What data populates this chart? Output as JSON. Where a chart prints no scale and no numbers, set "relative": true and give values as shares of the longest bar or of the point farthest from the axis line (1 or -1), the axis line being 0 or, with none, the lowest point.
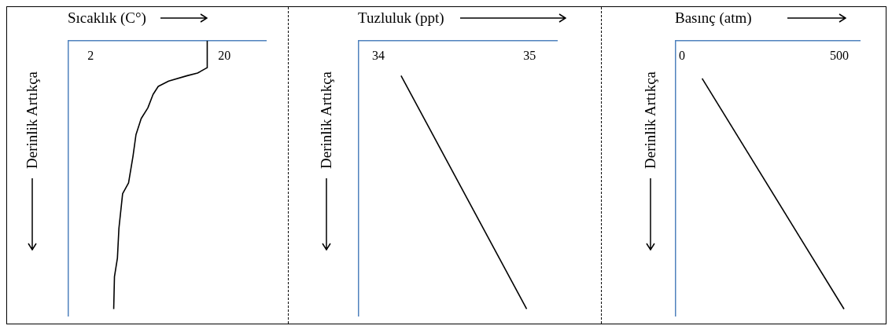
{
  "chart_data": [
    {
      "type": "line",
      "relative": true,
      "xlabel": "Sıcaklık (C°)",
      "ylabel": "Derinlik Artıkça",
      "xlim": [
        -1,
        25.6
      ],
      "xticks": [
        2,
        20
      ],
      "series": [
        {
          "color": "#000000",
          "x": [
            17.7,
            17.7,
            16.4,
            15.0,
            12.5,
            11.1,
            10.4,
            9.7,
            8.8,
            8.1,
            7.7,
            7.1,
            6.3,
            5.8,
            5.6,
            5.2,
            5.1
          ],
          "values": [
            0,
            -0.1,
            -0.12,
            -0.13,
            -0.15,
            -0.17,
            -0.2,
            -0.25,
            -0.29,
            -0.35,
            -0.43,
            -0.53,
            -0.57,
            -0.7,
            -0.81,
            -0.88,
            -1
          ]
        }
      ]
    },
    {
      "type": "line",
      "relative": true,
      "xlabel": "Tuzluluk (ppt)",
      "ylabel": "Derinlik Artıkça",
      "xlim": [
        33.87,
        35.18
      ],
      "xticks": [
        34,
        35
      ],
      "series": [
        {
          "color": "#000000",
          "x": [
            34.15,
            34.98
          ],
          "values": [
            -0.13,
            -1
          ]
        }
      ]
    },
    {
      "type": "line",
      "relative": true,
      "xlabel": "Basınç (atm)",
      "ylabel": "Derinlik Artıkça",
      "xlim": [
        -20,
        565
      ],
      "xticks": [
        0,
        500
      ],
      "series": [
        {
          "color": "#000000",
          "x": [
            64,
            515
          ],
          "values": [
            -0.14,
            -1
          ]
        }
      ]
    }
  ]
}
